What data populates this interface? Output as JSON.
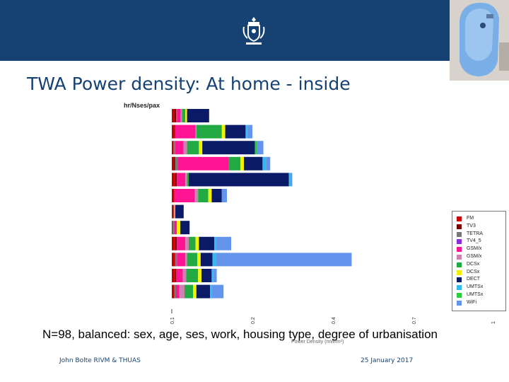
{
  "slide_title": "TWA Power density: At home - inside",
  "subtitle": "N=98, balanced: sex, age, ses, work, housing type, degree of urbanisation",
  "footer": {
    "left": "John Bolte RIVM & THUAS",
    "right": "25 January 2017"
  },
  "icons": {
    "crest": "coat-of-arms-icon"
  },
  "colors": {
    "banner": "#154273",
    "title": "#154273"
  },
  "chart_data": {
    "type": "bar",
    "orientation": "horizontal",
    "stacked": true,
    "title": "",
    "ylabel": "hr/Nses/pax",
    "xlabel": "Power Density (mW/m²)",
    "xticks": [
      "0.1",
      "0.2",
      "0.4",
      "0.7",
      "1"
    ],
    "legend_position": "right",
    "legend": [
      "FM",
      "TV3",
      "TETRA",
      "TV4_5",
      "GSM/x",
      "GSM/x",
      "DCSx",
      "DCSx",
      "DECT",
      "UMTSx",
      "UMTSx",
      "WiFi"
    ],
    "series_colors": [
      "#cc0000",
      "#7a0000",
      "#777777",
      "#8a2be2",
      "#ff1493",
      "#d080b0",
      "#22aa44",
      "#f2f200",
      "#0b1a66",
      "#33bbee",
      "#2ecc40",
      "#6495ed"
    ],
    "rows": [
      [
        0.003,
        0.002,
        0.001,
        0,
        0.004,
        0.002,
        0.004,
        0.002,
        0.026,
        0,
        0,
        0
      ],
      [
        0.003,
        0.001,
        0,
        0,
        0.024,
        0.001,
        0.03,
        0.004,
        0.024,
        0.002,
        0,
        0.006
      ],
      [
        0.002,
        0,
        0.002,
        0,
        0.01,
        0.004,
        0.014,
        0.004,
        0.062,
        0,
        0.002,
        0.008
      ],
      [
        0.002,
        0.002,
        0.003,
        0,
        0.06,
        0,
        0.014,
        0.004,
        0.022,
        0.004,
        0,
        0.005
      ],
      [
        0.004,
        0.002,
        0,
        0,
        0.01,
        0.002,
        0.002,
        0,
        0.118,
        0.002,
        0,
        0.002
      ],
      [
        0.003,
        0,
        0,
        0,
        0.024,
        0.004,
        0.012,
        0.004,
        0.012,
        0,
        0,
        0.006
      ],
      [
        0.001,
        0.001,
        0,
        0,
        0.001,
        0,
        0,
        0.001,
        0.01,
        0,
        0,
        0
      ],
      [
        0.001,
        0,
        0.002,
        0,
        0.003,
        0,
        0,
        0.004,
        0.011,
        0,
        0,
        0
      ],
      [
        0.004,
        0.002,
        0,
        0,
        0.01,
        0.004,
        0.008,
        0.004,
        0.018,
        0.002,
        0,
        0.018
      ],
      [
        0.004,
        0,
        0.002,
        0,
        0.01,
        0.002,
        0.012,
        0.004,
        0.014,
        0.004,
        0,
        0.16
      ],
      [
        0.004,
        0.001,
        0,
        0,
        0.008,
        0.004,
        0.014,
        0.004,
        0.012,
        0.002,
        0,
        0.004
      ],
      [
        0.003,
        0,
        0.002,
        0,
        0.004,
        0.006,
        0.01,
        0.004,
        0.016,
        0.002,
        0,
        0.014
      ]
    ]
  }
}
